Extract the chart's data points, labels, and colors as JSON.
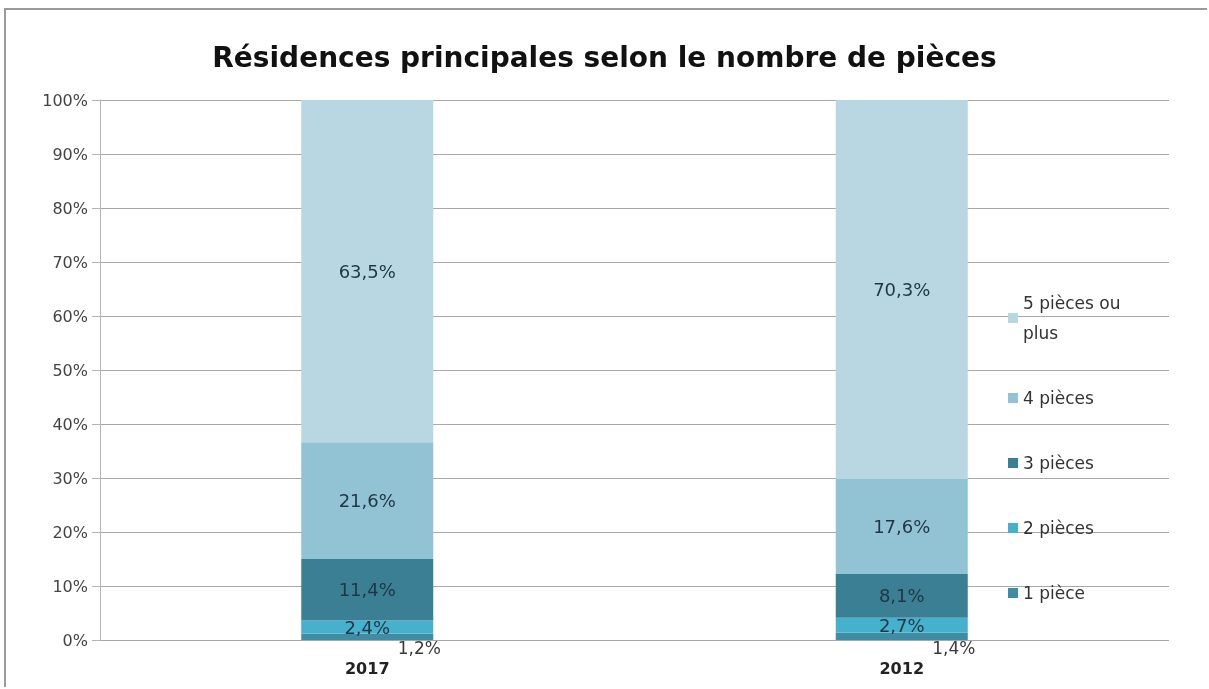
{
  "chart_data": {
    "type": "bar",
    "title": "Résidences principales selon le nombre de pièces",
    "categories": [
      "2017",
      "2012"
    ],
    "stacked": true,
    "series": [
      {
        "name": "1 pièce",
        "color": "#3e8da5",
        "values": [
          1.2,
          1.4
        ],
        "value_labels": [
          "1,2%",
          "1,4%"
        ]
      },
      {
        "name": "2 pièces",
        "color": "#46b1cc",
        "values": [
          2.4,
          2.7
        ],
        "value_labels": [
          "2,4%",
          "2,7%"
        ]
      },
      {
        "name": "3 pièces",
        "color": "#3b7f94",
        "values": [
          11.4,
          8.1
        ],
        "value_labels": [
          "11,4%",
          "8,1%"
        ]
      },
      {
        "name": "4 pièces",
        "color": "#92c3d5",
        "values": [
          21.6,
          17.6
        ],
        "value_labels": [
          "21,6%",
          "17,6%"
        ]
      },
      {
        "name": "5 pièces ou plus",
        "color": "#b9d6e3",
        "values": [
          63.5,
          70.3
        ],
        "value_labels": [
          "63,5%",
          "70,3%"
        ]
      }
    ],
    "ylim": [
      0,
      100
    ],
    "yticks": [
      {
        "value": 0,
        "label": "0%"
      },
      {
        "value": 10,
        "label": "10%"
      },
      {
        "value": 20,
        "label": "20%"
      },
      {
        "value": 30,
        "label": "30%"
      },
      {
        "value": 40,
        "label": "40%"
      },
      {
        "value": 50,
        "label": "50%"
      },
      {
        "value": 60,
        "label": "60%"
      },
      {
        "value": 70,
        "label": "70%"
      },
      {
        "value": 80,
        "label": "80%"
      },
      {
        "value": 90,
        "label": "90%"
      },
      {
        "value": 100,
        "label": "100%"
      }
    ],
    "grid": "y",
    "legend": "right"
  }
}
